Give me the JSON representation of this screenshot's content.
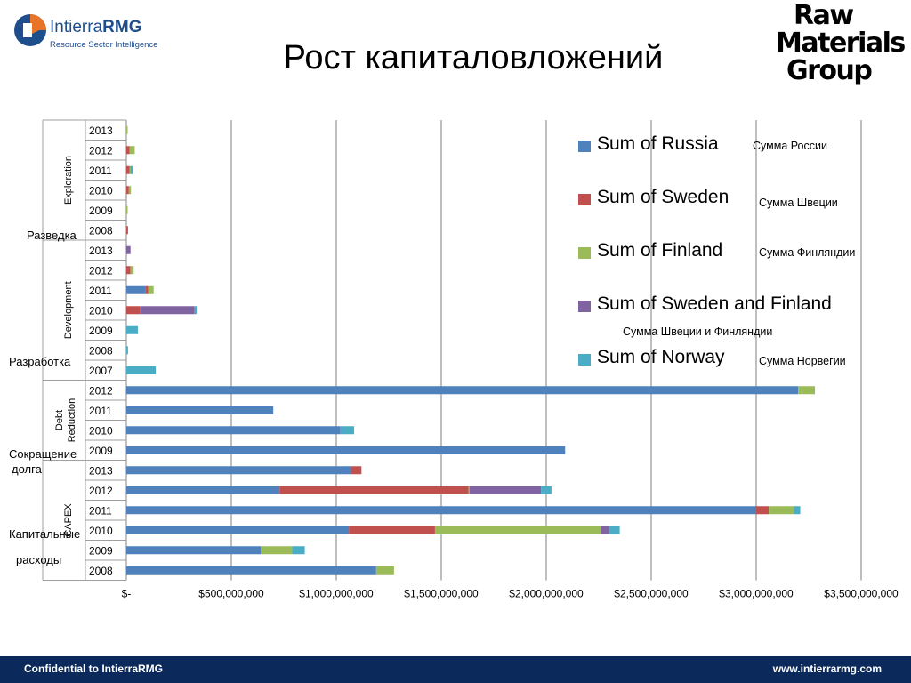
{
  "header": {
    "logo_left_name_a": "Intierra",
    "logo_left_name_b": "RMG",
    "logo_left_tagline": "Resource Sector Intelligence",
    "title": "Рост капиталовложений",
    "logo_right_line1": "Raw",
    "logo_right_line2": "Materials",
    "logo_right_line3": "Group"
  },
  "footer": {
    "left": "Confidential to IntierraRMG",
    "right": "www.intierrarmg.com"
  },
  "colors": {
    "russia": "#4f81bd",
    "sweden": "#c0504d",
    "finland": "#9bbb59",
    "sweden_finland": "#8064a2",
    "norway": "#4bacc6",
    "footer_bg": "#0b2a5b"
  },
  "legend_ru": {
    "russia": "Сумма России",
    "sweden": "Сумма Швеции",
    "finland": "Сумма Финляндии",
    "sweden_finland": "Сумма Швеции и Финляндии",
    "norway": "Сумма Норвегии"
  },
  "category_ru": {
    "exploration": "Разведка",
    "development": "Разработка",
    "debt_line1": "Сокращение",
    "debt_line2": "долга",
    "capex_line1": "Капитальные",
    "capex_line2": "расходы"
  },
  "chart_data": {
    "type": "bar",
    "orientation": "horizontal",
    "stacked": true,
    "xlim": [
      0,
      3500000000
    ],
    "x_ticks": [
      "$-",
      "$500,000,000",
      "$1,000,000,000",
      "$1,500,000,000",
      "$2,000,000,000",
      "$2,500,000,000",
      "$3,000,000,000",
      "$3,500,000,000"
    ],
    "grid": true,
    "legend_position": "right",
    "groups": [
      {
        "name": "Exploration",
        "years": [
          "2013",
          "2012",
          "2011",
          "2010",
          "2009",
          "2008"
        ]
      },
      {
        "name": "Development",
        "years": [
          "2013",
          "2012",
          "2011",
          "2010",
          "2009",
          "2008",
          "2007"
        ]
      },
      {
        "name": "Debt Reduction",
        "years": [
          "2012",
          "2011",
          "2010",
          "2009"
        ]
      },
      {
        "name": "CAPEX",
        "years": [
          "2013",
          "2012",
          "2011",
          "2010",
          "2009",
          "2008"
        ]
      }
    ],
    "series": [
      {
        "name": "Sum of Russia",
        "color": "#4f81bd",
        "values": [
          0,
          0,
          0,
          0,
          0,
          0,
          0,
          0,
          90000000,
          0,
          0,
          0,
          0,
          3200000000,
          700000000,
          1020000000,
          2090000000,
          1070000000,
          730000000,
          3000000000,
          1060000000,
          640000000,
          1190000000
        ]
      },
      {
        "name": "Sum of Sweden",
        "color": "#c0504d",
        "values": [
          0,
          15000000,
          15000000,
          12000000,
          0,
          8000000,
          0,
          20000000,
          15000000,
          65000000,
          0,
          0,
          0,
          0,
          0,
          0,
          0,
          50000000,
          900000000,
          60000000,
          410000000,
          0,
          0
        ]
      },
      {
        "name": "Sum of Finland",
        "color": "#9bbb59",
        "values": [
          5000000,
          25000000,
          5000000,
          10000000,
          3000000,
          0,
          0,
          15000000,
          25000000,
          0,
          0,
          0,
          0,
          80000000,
          0,
          0,
          0,
          0,
          5000000,
          120000000,
          790000000,
          150000000,
          85000000
        ]
      },
      {
        "name": "Sum of Sweden and Finland",
        "color": "#8064a2",
        "values": [
          0,
          0,
          0,
          0,
          0,
          0,
          20000000,
          0,
          0,
          260000000,
          0,
          0,
          0,
          0,
          0,
          0,
          0,
          0,
          340000000,
          0,
          40000000,
          0,
          0
        ]
      },
      {
        "name": "Sum of Norway",
        "color": "#4bacc6",
        "values": [
          0,
          0,
          10000000,
          0,
          0,
          0,
          0,
          0,
          0,
          10000000,
          55000000,
          8000000,
          140000000,
          0,
          0,
          65000000,
          0,
          0,
          50000000,
          30000000,
          50000000,
          60000000,
          0
        ]
      }
    ]
  }
}
